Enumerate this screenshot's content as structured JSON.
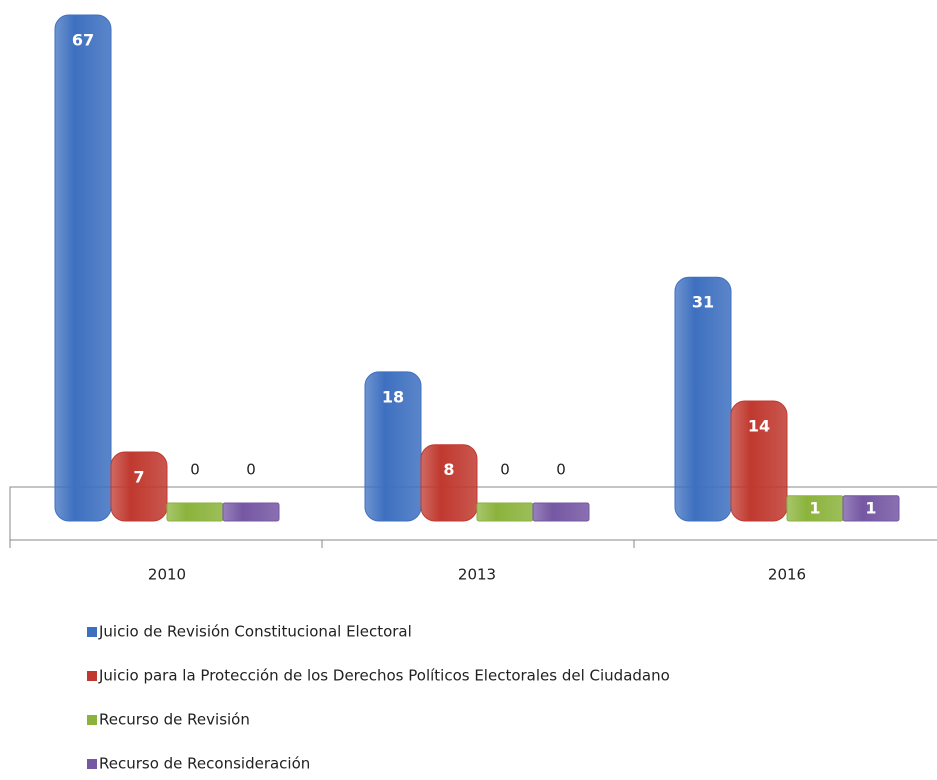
{
  "chart_data": {
    "type": "bar",
    "categories": [
      "2010",
      "2013",
      "2016"
    ],
    "series": [
      {
        "name": "Juicio de Revisión Constitucional Electoral",
        "color": "#3e70c0",
        "values": [
          67,
          18,
          31
        ]
      },
      {
        "name": "Juicio para la Protección de los Derechos Políticos Electorales del Ciudadano",
        "color": "#c0392f",
        "values": [
          7,
          8,
          14
        ]
      },
      {
        "name": "Recurso de Revisión",
        "color": "#8bb33c",
        "values": [
          0,
          0,
          1
        ]
      },
      {
        "name": "Recurso de Reconsideración",
        "color": "#7557a3",
        "values": [
          0,
          0,
          1
        ]
      }
    ],
    "legend": "bottom"
  }
}
